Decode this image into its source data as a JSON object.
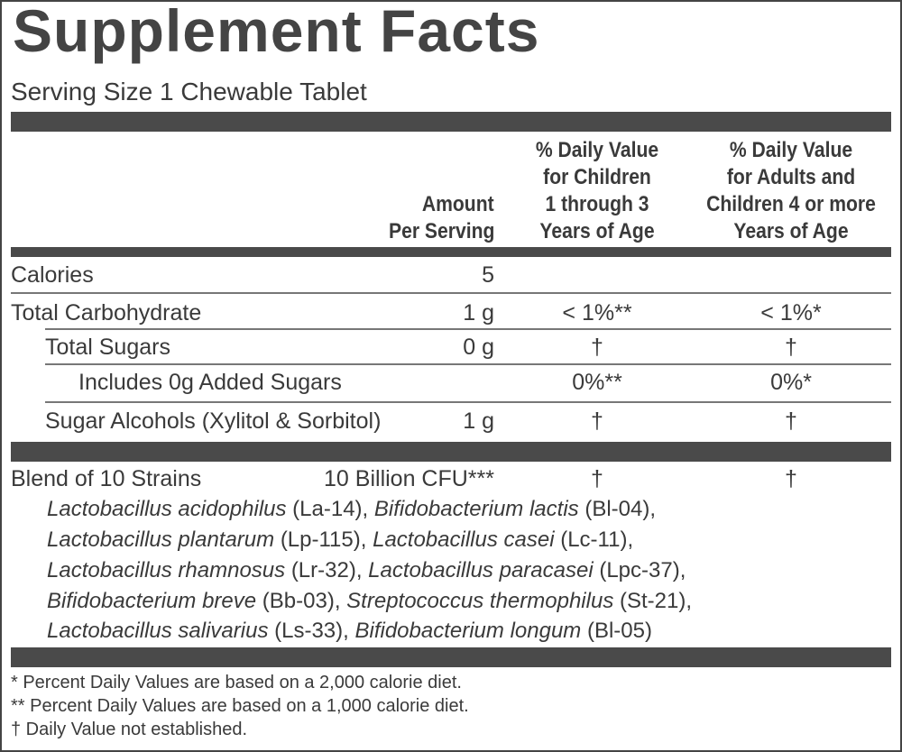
{
  "title": "Supplement Facts",
  "serving_size": "Serving Size 1 Chewable Tablet",
  "header": {
    "amount": [
      "Amount",
      "Per Serving"
    ],
    "dv_children": [
      "% Daily Value",
      "for Children",
      "1 through 3",
      "Years of Age"
    ],
    "dv_adults": [
      "% Daily Value",
      "for Adults and",
      "Children 4 or more",
      "Years of Age"
    ]
  },
  "rows": [
    {
      "label": "Calories",
      "amount": "5"
    },
    {
      "label": "Total Carbohydrate",
      "amount": "1 g",
      "dv_children": "< 1%**",
      "dv_adults": "< 1%*"
    },
    {
      "label": "Total Sugars",
      "amount": "0 g",
      "dv_children": "†",
      "dv_adults": "†"
    },
    {
      "label": "Includes 0g Added Sugars",
      "dv_children": "0%**",
      "dv_adults": "0%*"
    },
    {
      "label": "Sugar Alcohols (Xylitol & Sorbitol)",
      "amount": "1 g",
      "dv_children": "†",
      "dv_adults": "†"
    }
  ],
  "blend": {
    "label": "Blend of 10 Strains",
    "amount": "10 Billion CFU***",
    "dv_children": "†",
    "dv_adults": "†",
    "strains": [
      {
        "species": "Lactobacillus acidophilus",
        "code": "(La-14),"
      },
      {
        "species": "Bifidobacterium lactis",
        "code": "(Bl-04),"
      },
      {
        "species": "Lactobacillus plantarum",
        "code": "(Lp-115),"
      },
      {
        "species": "Lactobacillus casei",
        "code": "(Lc-11),"
      },
      {
        "species": "Lactobacillus rhamnosus",
        "code": "(Lr-32),"
      },
      {
        "species": "Lactobacillus paracasei",
        "code": "(Lpc-37),"
      },
      {
        "species": "Bifidobacterium breve",
        "code": "(Bb-03),"
      },
      {
        "species": "Streptococcus thermophilus",
        "code": "(St-21),"
      },
      {
        "species": "Lactobacillus salivarius",
        "code": "(Ls-33),"
      },
      {
        "species": "Bifidobacterium longum",
        "code": "(Bl-05)"
      }
    ]
  },
  "footnotes": [
    "* Percent Daily Values are based on a 2,000 calorie diet.",
    "** Percent Daily Values are based on a 1,000 calorie diet.",
    "† Daily Value not established."
  ]
}
